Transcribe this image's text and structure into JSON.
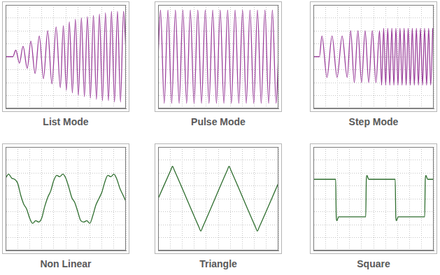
{
  "chart_data": [
    {
      "type": "line",
      "title": "List Mode",
      "color": "#9b3f9b",
      "grid": true,
      "tick_labels": false,
      "xlim": [
        0,
        10
      ],
      "ylim": [
        -4,
        4
      ],
      "xticks": [
        0,
        1,
        2,
        3,
        4,
        5,
        6,
        7,
        8,
        9,
        10
      ],
      "yticks": [
        -4,
        -3,
        -2,
        -1,
        0,
        1,
        2,
        3,
        4
      ],
      "x": [
        0,
        0.6,
        0.85,
        1.15,
        1.45,
        1.8,
        2.1,
        2.45,
        2.8,
        3.15,
        3.5,
        3.85,
        4.2,
        4.55,
        4.8,
        5.05,
        5.3,
        5.55,
        5.8,
        6.05,
        6.3,
        6.55,
        6.8,
        7.05,
        7.3,
        7.55,
        7.8,
        8.05,
        8.3,
        8.55,
        8.8,
        9.05,
        9.3,
        9.55,
        9.8,
        10
      ],
      "values": [
        0,
        0,
        0.5,
        -0.5,
        0.8,
        -0.9,
        1.2,
        -1.3,
        1.6,
        -1.7,
        2.0,
        -2.1,
        2.3,
        -2.4,
        2.4,
        -2.6,
        2.7,
        -2.8,
        2.9,
        -3.0,
        3.0,
        -3.1,
        3.1,
        -3.2,
        3.2,
        -3.3,
        3.3,
        -3.4,
        3.4,
        -3.4,
        3.5,
        -3.5,
        3.5,
        -3.5,
        3.5,
        0.5
      ]
    },
    {
      "type": "line",
      "title": "Pulse Mode",
      "color": "#9b3f9b",
      "grid": true,
      "tick_labels": false,
      "xlim": [
        0,
        10
      ],
      "ylim": [
        -4,
        4
      ],
      "xticks": [
        0,
        1,
        2,
        3,
        4,
        5,
        6,
        7,
        8,
        9,
        10
      ],
      "yticks": [
        -4,
        -3,
        -2,
        -1,
        0,
        1,
        2,
        3,
        4
      ],
      "x": [
        0,
        0.2,
        0.51,
        0.82,
        1.13,
        1.44,
        1.75,
        2.06,
        2.37,
        2.68,
        2.99,
        3.3,
        3.61,
        3.92,
        4.23,
        4.54,
        4.85,
        5.16,
        5.47,
        5.78,
        6.09,
        6.4,
        6.71,
        7.02,
        7.33,
        7.64,
        7.95,
        8.26,
        8.57,
        8.88,
        9.19,
        9.5,
        9.81,
        10
      ],
      "values": [
        0,
        3.6,
        -3.6,
        3.6,
        -3.6,
        3.6,
        -3.6,
        3.6,
        -3.6,
        3.6,
        -3.6,
        3.6,
        -3.6,
        3.6,
        -3.6,
        3.6,
        -3.6,
        3.6,
        -3.6,
        3.6,
        -3.6,
        3.6,
        -3.6,
        3.6,
        -3.6,
        3.6,
        -3.6,
        3.6,
        -3.6,
        3.6,
        -3.6,
        3.6,
        -3.6,
        0
      ]
    },
    {
      "type": "line",
      "title": "Step Mode",
      "color": "#9b3f9b",
      "grid": true,
      "tick_labels": false,
      "xlim": [
        0,
        10
      ],
      "ylim": [
        -4,
        4
      ],
      "xticks": [
        0,
        1,
        2,
        3,
        4,
        5,
        6,
        7,
        8,
        9,
        10
      ],
      "yticks": [
        -4,
        -3,
        -2,
        -1,
        0,
        1,
        2,
        3,
        4
      ],
      "x": [
        0,
        0.5,
        0.71,
        1.13,
        1.55,
        1.97,
        2.39,
        2.81,
        3.1,
        3.4,
        3.7,
        4.0,
        4.3,
        4.6,
        4.9,
        5.2,
        5.5,
        5.67,
        5.84,
        6.01,
        6.18,
        6.35,
        6.52,
        6.69,
        6.86,
        7.03,
        7.2,
        7.37,
        7.54,
        7.71,
        7.88,
        8.05,
        8.22,
        8.39,
        8.56,
        8.73,
        8.9,
        9.07,
        9.24,
        9.41,
        9.58,
        9.75,
        9.92
      ],
      "values": [
        0,
        0,
        1.6,
        -1.6,
        1.6,
        -1.6,
        1.6,
        -1.6,
        2.0,
        -2.0,
        2.0,
        -2.0,
        2.0,
        -2.0,
        2.0,
        -2.0,
        2.0,
        -2.2,
        2.2,
        -2.2,
        2.2,
        -2.2,
        2.2,
        -2.2,
        2.2,
        -2.2,
        2.2,
        -2.2,
        2.2,
        -2.2,
        2.2,
        -2.2,
        2.2,
        -2.2,
        2.2,
        -2.2,
        2.2,
        -2.2,
        2.2,
        -2.2,
        2.2,
        -2.2,
        2.2
      ]
    },
    {
      "type": "line",
      "title": "Non Linear",
      "color": "#2f6e2f",
      "grid": true,
      "tick_labels": false,
      "xlim": [
        0,
        10
      ],
      "ylim": [
        -4,
        4
      ],
      "xticks": [
        0,
        1,
        2,
        3,
        4,
        5,
        6,
        7,
        8,
        9,
        10
      ],
      "yticks": [
        -4,
        -3,
        -2,
        -1,
        0,
        1,
        2,
        3,
        4
      ],
      "x": [
        0,
        0.25,
        0.5,
        0.75,
        1.0,
        1.25,
        1.5,
        1.75,
        2.0,
        2.25,
        2.5,
        2.75,
        3.0,
        3.25,
        3.5,
        3.75,
        4.0,
        4.25,
        4.5,
        4.75,
        5.0,
        5.25,
        5.5,
        5.75,
        6.0,
        6.25,
        6.5,
        6.75,
        7.0,
        7.25,
        7.5,
        7.75,
        8.0,
        8.25,
        8.5,
        8.75,
        9.0,
        9.25,
        9.5,
        9.75,
        10.0
      ],
      "values": [
        1.6,
        1.9,
        1.6,
        1.5,
        1.2,
        0.3,
        -0.4,
        -0.8,
        -1.5,
        -1.9,
        -1.7,
        -1.8,
        -1.5,
        -0.6,
        0.1,
        0.6,
        1.4,
        1.8,
        1.7,
        1.9,
        1.6,
        0.9,
        0.1,
        -0.3,
        -1.0,
        -1.7,
        -1.8,
        -1.7,
        -1.9,
        -1.3,
        -0.5,
        0.0,
        0.5,
        1.3,
        1.8,
        1.7,
        1.9,
        1.5,
        0.8,
        0.3,
        -0.2
      ]
    },
    {
      "type": "line",
      "title": "Triangle",
      "color": "#2f6e2f",
      "grid": true,
      "tick_labels": false,
      "xlim": [
        0,
        10
      ],
      "ylim": [
        -4,
        4
      ],
      "xticks": [
        0,
        1,
        2,
        3,
        4,
        5,
        6,
        7,
        8,
        9,
        10
      ],
      "yticks": [
        -4,
        -3,
        -2,
        -1,
        0,
        1,
        2,
        3,
        4
      ],
      "x": [
        0,
        1.05,
        1.2,
        1.35,
        3.4,
        3.55,
        3.7,
        5.75,
        5.9,
        6.05,
        8.1,
        8.25,
        8.4,
        10
      ],
      "values": [
        0.0,
        2.2,
        2.5,
        2.2,
        -2.2,
        -2.5,
        -2.2,
        2.2,
        2.5,
        2.2,
        -2.2,
        -2.5,
        -2.2,
        1.2
      ]
    },
    {
      "type": "line",
      "title": "Square",
      "color": "#2f6e2f",
      "grid": true,
      "tick_labels": false,
      "xlim": [
        0,
        10
      ],
      "ylim": [
        -4,
        4
      ],
      "xticks": [
        0,
        1,
        2,
        3,
        4,
        5,
        6,
        7,
        8,
        9,
        10
      ],
      "yticks": [
        -4,
        -3,
        -2,
        -1,
        0,
        1,
        2,
        3,
        4
      ],
      "x": [
        0,
        1.85,
        1.9,
        1.95,
        2.1,
        4.35,
        4.4,
        4.45,
        4.6,
        6.8,
        6.85,
        6.9,
        7.05,
        9.25,
        9.3,
        9.35,
        9.5,
        10
      ],
      "values": [
        1.5,
        1.5,
        -1.4,
        -1.7,
        -1.4,
        -1.4,
        1.5,
        1.8,
        1.5,
        1.5,
        -1.4,
        -1.7,
        -1.4,
        -1.4,
        1.5,
        1.8,
        1.5,
        1.5
      ]
    }
  ]
}
